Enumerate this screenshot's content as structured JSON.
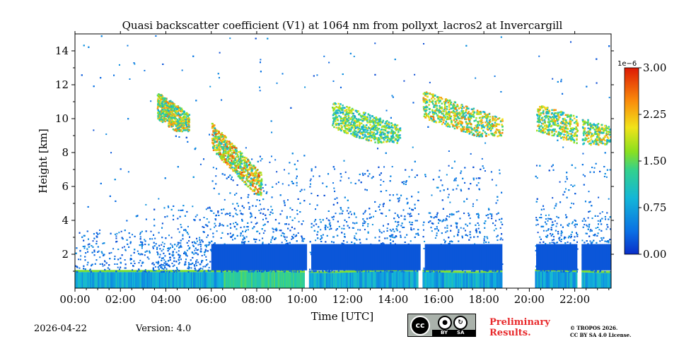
{
  "chart_data": {
    "type": "heatmap",
    "title": "Quasi backscatter coefficient (V1) at 1064 nm from pollyxt_lacros2 at Invercargill",
    "xlabel": "Time [UTC]",
    "ylabel": "Height [km]",
    "xlim": [
      0,
      23.6
    ],
    "ylim": [
      0,
      15
    ],
    "x_ticks": [
      "00:00",
      "02:00",
      "04:00",
      "06:00",
      "08:00",
      "10:00",
      "12:00",
      "14:00",
      "16:00",
      "18:00",
      "20:00",
      "22:00"
    ],
    "y_ticks": [
      "2",
      "4",
      "6",
      "8",
      "10",
      "12",
      "14"
    ],
    "colorbar": {
      "min": 0,
      "max": 3.0,
      "multiplier": "1e−6",
      "ticks": [
        "0.00",
        "0.75",
        "1.50",
        "2.25",
        "3.00"
      ],
      "colormap": "jet"
    },
    "data_gaps_utc": [
      [
        10.1,
        10.3
      ],
      [
        15.1,
        15.3
      ],
      [
        18.8,
        20.25
      ],
      [
        22.1,
        22.3
      ]
    ],
    "cloud_layers": [
      {
        "start": 3.6,
        "end": 5.0,
        "base_km": 9.3,
        "top_km": 11.5,
        "peak": 2.6
      },
      {
        "start": 6.0,
        "end": 8.2,
        "base_km": 5.5,
        "top_km": 10.5,
        "peak": 2.8
      },
      {
        "start": 11.3,
        "end": 14.3,
        "base_km": 8.6,
        "top_km": 11.0,
        "peak": 2.2
      },
      {
        "start": 15.3,
        "end": 18.8,
        "base_km": 9.0,
        "top_km": 11.7,
        "peak": 2.6
      },
      {
        "start": 20.3,
        "end": 23.6,
        "base_km": 8.5,
        "top_km": 10.8,
        "peak": 2.5
      }
    ]
  },
  "footer": {
    "date": "2026-04-22",
    "version": "Version: 4.0",
    "license_badge": {
      "cc": "cc",
      "by": "BY",
      "sa": "SA"
    },
    "preliminary_line1": "Preliminary",
    "preliminary_line2": "Results.",
    "copyright_line1": "© TROPOS 2026.",
    "copyright_line2": "CC BY SA 4.0 License."
  }
}
